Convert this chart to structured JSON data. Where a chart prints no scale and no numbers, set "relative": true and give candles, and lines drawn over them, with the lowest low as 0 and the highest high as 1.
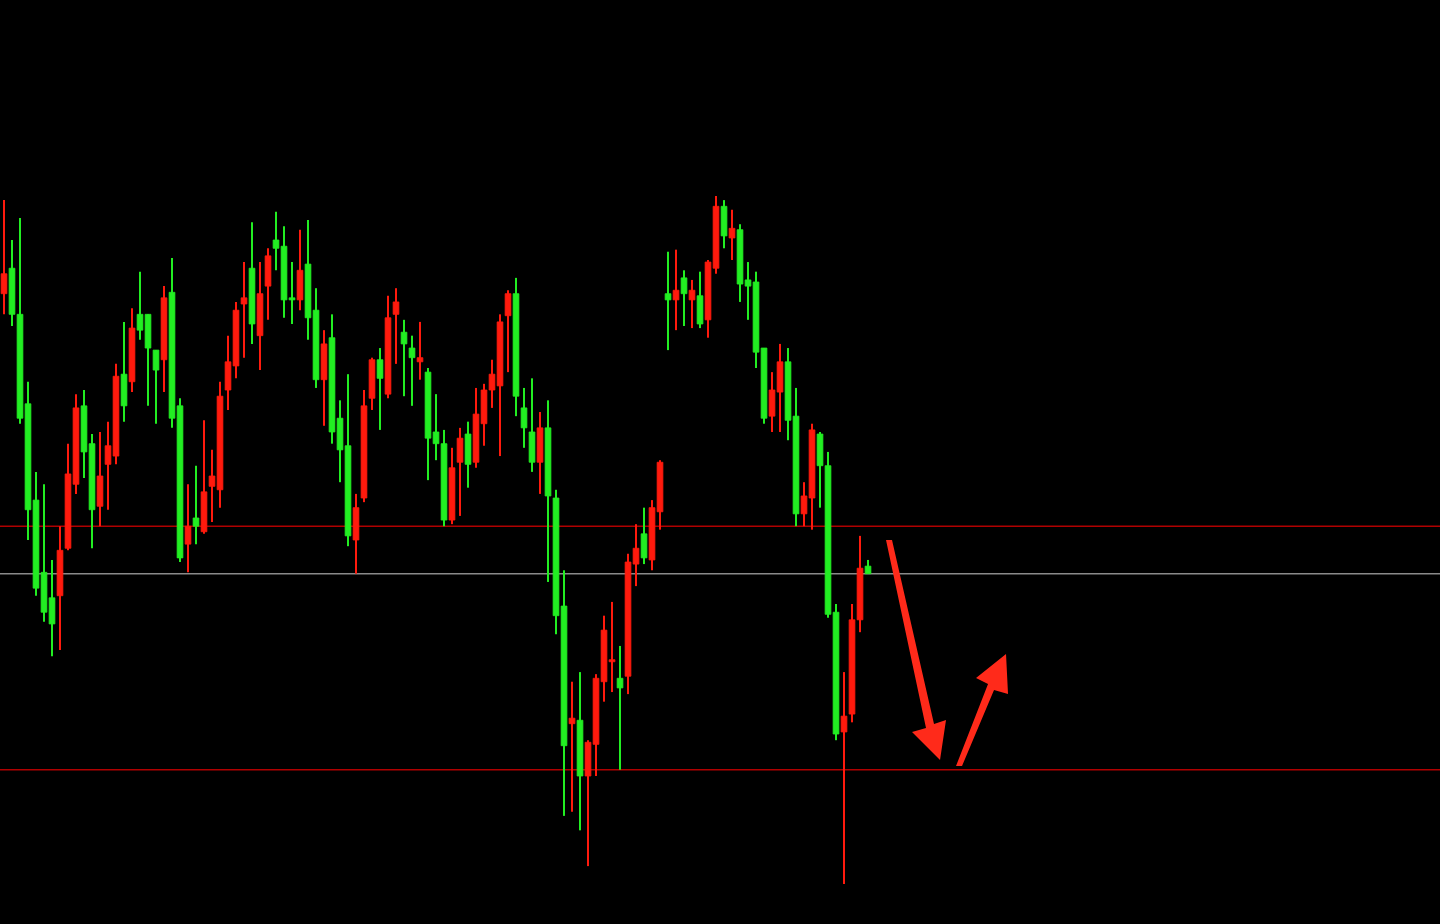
{
  "chart_data": {
    "type": "candlestick",
    "relative": true,
    "categories": [
      null,
      null,
      null,
      null,
      null,
      null,
      null,
      null,
      null,
      null,
      null,
      null,
      null,
      null,
      null,
      null,
      null,
      null,
      null,
      null,
      null,
      null,
      null,
      null,
      null,
      null,
      null,
      null,
      null,
      null,
      null,
      null,
      null,
      null,
      null,
      null,
      null,
      null,
      null,
      null,
      null,
      null,
      null,
      null,
      null,
      null,
      null,
      null,
      null,
      null,
      null,
      null,
      null,
      null,
      null,
      null,
      null,
      null,
      null,
      null,
      null,
      null,
      null,
      null,
      null,
      null,
      null,
      null,
      null,
      null,
      null,
      null,
      null,
      null,
      null,
      null,
      null,
      null,
      null,
      null,
      null,
      null,
      null,
      null,
      null,
      null,
      null,
      null,
      null,
      null,
      null,
      null,
      null,
      null,
      null,
      null,
      null,
      null,
      null,
      null,
      null,
      null,
      null,
      null,
      null,
      null,
      null,
      null,
      null
    ],
    "ohlc": [
      [
        0.858,
        0.994,
        0.828,
        0.887
      ],
      [
        0.895,
        0.936,
        0.811,
        0.828
      ],
      [
        0.828,
        0.968,
        0.669,
        0.677
      ],
      [
        0.698,
        0.73,
        0.5,
        0.544
      ],
      [
        0.558,
        0.599,
        0.419,
        0.43
      ],
      [
        0.453,
        0.581,
        0.381,
        0.395
      ],
      [
        0.416,
        0.471,
        0.331,
        0.378
      ],
      [
        0.419,
        0.52,
        0.34,
        0.485
      ],
      [
        0.488,
        0.64,
        0.485,
        0.596
      ],
      [
        0.581,
        0.712,
        0.567,
        0.692
      ],
      [
        0.695,
        0.718,
        0.59,
        0.628
      ],
      [
        0.64,
        0.654,
        0.488,
        0.544
      ],
      [
        0.549,
        0.657,
        0.52,
        0.593
      ],
      [
        0.61,
        0.672,
        0.544,
        0.637
      ],
      [
        0.622,
        0.756,
        0.61,
        0.738
      ],
      [
        0.741,
        0.817,
        0.672,
        0.695
      ],
      [
        0.73,
        0.837,
        0.715,
        0.808
      ],
      [
        0.828,
        0.89,
        0.791,
        0.805
      ],
      [
        0.828,
        0.828,
        0.695,
        0.779
      ],
      [
        0.776,
        0.776,
        0.669,
        0.747
      ],
      [
        0.762,
        0.869,
        0.715,
        0.852
      ],
      [
        0.86,
        0.91,
        0.663,
        0.677
      ],
      [
        0.695,
        0.706,
        0.468,
        0.474
      ],
      [
        0.494,
        0.581,
        0.453,
        0.52
      ],
      [
        0.532,
        0.608,
        0.494,
        0.52
      ],
      [
        0.512,
        0.674,
        0.509,
        0.57
      ],
      [
        0.578,
        0.631,
        0.526,
        0.593
      ],
      [
        0.573,
        0.73,
        0.547,
        0.709
      ],
      [
        0.718,
        0.797,
        0.689,
        0.759
      ],
      [
        0.753,
        0.846,
        0.735,
        0.834
      ],
      [
        0.843,
        0.904,
        0.765,
        0.852
      ],
      [
        0.895,
        0.962,
        0.785,
        0.814
      ],
      [
        0.797,
        0.904,
        0.747,
        0.858
      ],
      [
        0.869,
        0.924,
        0.82,
        0.913
      ],
      [
        0.936,
        0.977,
        0.892,
        0.924
      ],
      [
        0.927,
        0.956,
        0.823,
        0.849
      ],
      [
        0.852,
        0.904,
        0.814,
        0.849
      ],
      [
        0.849,
        0.951,
        0.834,
        0.892
      ],
      [
        0.901,
        0.965,
        0.791,
        0.823
      ],
      [
        0.834,
        0.866,
        0.721,
        0.733
      ],
      [
        0.733,
        0.805,
        0.666,
        0.785
      ],
      [
        0.794,
        0.828,
        0.64,
        0.657
      ],
      [
        0.677,
        0.703,
        0.584,
        0.631
      ],
      [
        0.637,
        0.741,
        0.491,
        0.506
      ],
      [
        0.5,
        0.567,
        0.451,
        0.547
      ],
      [
        0.561,
        0.718,
        0.555,
        0.695
      ],
      [
        0.706,
        0.765,
        0.689,
        0.762
      ],
      [
        0.762,
        0.779,
        0.66,
        0.735
      ],
      [
        0.712,
        0.855,
        0.706,
        0.823
      ],
      [
        0.828,
        0.866,
        0.756,
        0.846
      ],
      [
        0.802,
        0.82,
        0.709,
        0.785
      ],
      [
        0.779,
        0.797,
        0.695,
        0.765
      ],
      [
        0.759,
        0.817,
        0.733,
        0.765
      ],
      [
        0.744,
        0.75,
        0.587,
        0.648
      ],
      [
        0.657,
        0.712,
        0.616,
        0.64
      ],
      [
        0.64,
        0.66,
        0.52,
        0.529
      ],
      [
        0.529,
        0.634,
        0.523,
        0.605
      ],
      [
        0.613,
        0.663,
        0.535,
        0.648
      ],
      [
        0.654,
        0.672,
        0.576,
        0.61
      ],
      [
        0.613,
        0.721,
        0.605,
        0.683
      ],
      [
        0.669,
        0.727,
        0.637,
        0.718
      ],
      [
        0.718,
        0.762,
        0.692,
        0.741
      ],
      [
        0.724,
        0.828,
        0.622,
        0.817
      ],
      [
        0.826,
        0.863,
        0.744,
        0.858
      ],
      [
        0.858,
        0.881,
        0.68,
        0.709
      ],
      [
        0.692,
        0.721,
        0.634,
        0.663
      ],
      [
        0.657,
        0.735,
        0.599,
        0.613
      ],
      [
        0.613,
        0.686,
        0.567,
        0.663
      ],
      [
        0.663,
        0.703,
        0.439,
        0.564
      ],
      [
        0.561,
        0.573,
        0.363,
        0.39
      ],
      [
        0.404,
        0.456,
        0.099,
        0.201
      ],
      [
        0.233,
        0.294,
        0.105,
        0.241
      ],
      [
        0.238,
        0.308,
        0.078,
        0.157
      ],
      [
        0.157,
        0.209,
        0.026,
        0.206
      ],
      [
        0.203,
        0.305,
        0.157,
        0.299
      ],
      [
        0.294,
        0.39,
        0.265,
        0.369
      ],
      [
        0.323,
        0.41,
        0.279,
        0.326
      ],
      [
        0.299,
        0.346,
        0.166,
        0.285
      ],
      [
        0.302,
        0.48,
        0.276,
        0.468
      ],
      [
        0.465,
        0.523,
        0.433,
        0.488
      ],
      [
        0.509,
        0.547,
        0.465,
        0.474
      ],
      [
        0.471,
        0.558,
        0.456,
        0.547
      ],
      [
        0.541,
        0.616,
        0.515,
        0.613
      ],
      [
        0.858,
        0.919,
        0.776,
        0.849
      ],
      [
        0.849,
        0.922,
        0.805,
        0.863
      ],
      [
        0.881,
        0.892,
        0.811,
        0.858
      ],
      [
        0.849,
        0.878,
        0.808,
        0.863
      ],
      [
        0.855,
        0.89,
        0.808,
        0.814
      ],
      [
        0.82,
        0.907,
        0.794,
        0.904
      ],
      [
        0.895,
        1.0,
        0.887,
        0.985
      ],
      [
        0.985,
        0.994,
        0.924,
        0.942
      ],
      [
        0.939,
        0.98,
        0.907,
        0.953
      ],
      [
        0.951,
        0.959,
        0.846,
        0.872
      ],
      [
        0.878,
        0.904,
        0.82,
        0.869
      ],
      [
        0.875,
        0.89,
        0.75,
        0.773
      ],
      [
        0.779,
        0.779,
        0.669,
        0.677
      ],
      [
        0.68,
        0.744,
        0.657,
        0.718
      ],
      [
        0.715,
        0.785,
        0.657,
        0.759
      ],
      [
        0.759,
        0.779,
        0.645,
        0.674
      ],
      [
        0.68,
        0.721,
        0.52,
        0.538
      ],
      [
        0.538,
        0.584,
        0.52,
        0.564
      ],
      [
        0.561,
        0.669,
        0.515,
        0.66
      ],
      [
        0.654,
        0.657,
        0.547,
        0.608
      ],
      [
        0.608,
        0.628,
        0.387,
        0.392
      ],
      [
        0.395,
        0.407,
        0.209,
        0.218
      ],
      [
        0.221,
        0.308,
        0.0,
        0.244
      ],
      [
        0.247,
        0.407,
        0.235,
        0.384
      ],
      [
        0.384,
        0.506,
        0.366,
        0.459
      ],
      [
        0.462,
        0.471,
        0.451,
        0.451
      ]
    ],
    "colors": [
      "#ff1a0d",
      "#22ee22",
      "#22ee22",
      "#22ee22",
      "#22ee22",
      "#22ee22",
      "#22ee22",
      "#ff1a0d",
      "#ff1a0d",
      "#ff1a0d",
      "#22ee22",
      "#22ee22",
      "#ff1a0d",
      "#ff1a0d",
      "#ff1a0d",
      "#22ee22",
      "#ff1a0d",
      "#22ee22",
      "#22ee22",
      "#22ee22",
      "#ff1a0d",
      "#22ee22",
      "#22ee22",
      "#ff1a0d",
      "#22ee22",
      "#ff1a0d",
      "#ff1a0d",
      "#ff1a0d",
      "#ff1a0d",
      "#ff1a0d",
      "#ff1a0d",
      "#22ee22",
      "#ff1a0d",
      "#ff1a0d",
      "#22ee22",
      "#22ee22",
      "#22ee22",
      "#ff1a0d",
      "#22ee22",
      "#22ee22",
      "#ff1a0d",
      "#22ee22",
      "#22ee22",
      "#22ee22",
      "#ff1a0d",
      "#ff1a0d",
      "#ff1a0d",
      "#22ee22",
      "#ff1a0d",
      "#ff1a0d",
      "#22ee22",
      "#22ee22",
      "#ff1a0d",
      "#22ee22",
      "#22ee22",
      "#22ee22",
      "#ff1a0d",
      "#ff1a0d",
      "#22ee22",
      "#ff1a0d",
      "#ff1a0d",
      "#ff1a0d",
      "#ff1a0d",
      "#ff1a0d",
      "#22ee22",
      "#22ee22",
      "#22ee22",
      "#ff1a0d",
      "#22ee22",
      "#22ee22",
      "#22ee22",
      "#ff1a0d",
      "#22ee22",
      "#ff1a0d",
      "#ff1a0d",
      "#ff1a0d",
      "#ff1a0d",
      "#22ee22",
      "#ff1a0d",
      "#ff1a0d",
      "#22ee22",
      "#ff1a0d",
      "#ff1a0d",
      "#22ee22",
      "#ff1a0d",
      "#22ee22",
      "#ff1a0d",
      "#22ee22",
      "#ff1a0d",
      "#ff1a0d",
      "#22ee22",
      "#ff1a0d",
      "#22ee22",
      "#22ee22",
      "#22ee22",
      "#22ee22",
      "#ff1a0d",
      "#ff1a0d",
      "#22ee22",
      "#22ee22",
      "#ff1a0d",
      "#ff1a0d",
      "#22ee22",
      "#22ee22",
      "#22ee22",
      "#ff1a0d",
      "#ff1a0d",
      "#ff1a0d",
      "#22ee22"
    ],
    "ref_lines": [
      {
        "axis": "y",
        "value": 0.52,
        "color": "#b00000"
      },
      {
        "axis": "y",
        "value": 0.451,
        "color": "#8a8a8a"
      },
      {
        "axis": "y",
        "value": 0.166,
        "color": "#b00000"
      }
    ]
  }
}
